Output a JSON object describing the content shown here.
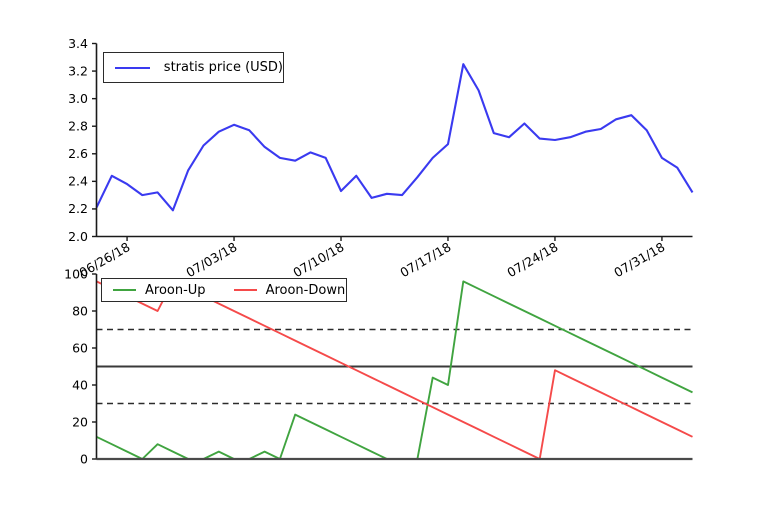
{
  "chart_data": [
    {
      "type": "line",
      "title": "",
      "xlabel": "",
      "ylabel": "",
      "grid": false,
      "ylim": [
        2.0,
        3.4
      ],
      "y_ticks": [
        2.0,
        2.2,
        2.4,
        2.6,
        2.8,
        3.0,
        3.2,
        3.4
      ],
      "y_tick_labels": [
        "2.0",
        "2.2",
        "2.4",
        "2.6",
        "2.8",
        "3.0",
        "3.2",
        "3.4"
      ],
      "x_tick_positions": [
        2,
        9,
        16,
        23,
        30,
        37
      ],
      "x_tick_labels": [
        "06/26/18",
        "07/03/18",
        "07/10/18",
        "07/17/18",
        "07/24/18",
        "07/31/18"
      ],
      "x_tick_rotation_deg": 30,
      "legend_position": "upper left",
      "series": [
        {
          "name": "stratis price (USD)",
          "color": "#3a3af0",
          "values": [
            2.21,
            2.44,
            2.38,
            2.3,
            2.32,
            2.19,
            2.48,
            2.66,
            2.76,
            2.81,
            2.77,
            2.65,
            2.57,
            2.55,
            2.61,
            2.57,
            2.33,
            2.44,
            2.28,
            2.31,
            2.3,
            2.43,
            2.57,
            2.67,
            3.25,
            3.06,
            2.75,
            2.72,
            2.82,
            2.71,
            2.7,
            2.72,
            2.76,
            2.78,
            2.85,
            2.88,
            2.77,
            2.57,
            2.5,
            2.32
          ]
        }
      ]
    },
    {
      "type": "line",
      "title": "",
      "xlabel": "",
      "ylabel": "",
      "grid": false,
      "ylim": [
        0,
        100
      ],
      "y_ticks": [
        0,
        20,
        40,
        60,
        80,
        100
      ],
      "y_tick_labels": [
        "0",
        "20",
        "40",
        "60",
        "80",
        "100"
      ],
      "x_tick_labels": [],
      "legend_position": "upper left",
      "reference_lines": [
        {
          "value": 70,
          "style": "dashed",
          "color": "#2b2b2b"
        },
        {
          "value": 50,
          "style": "solid",
          "color": "#3a3a3a"
        },
        {
          "value": 30,
          "style": "dashed",
          "color": "#2b2b2b"
        },
        {
          "value": 0,
          "style": "solid",
          "color": "#4a4a4a"
        }
      ],
      "series": [
        {
          "name": "Aroon-Up",
          "color": "#40a440",
          "values": [
            12,
            8,
            4,
            0,
            8,
            4,
            0,
            0,
            4,
            0,
            0,
            4,
            0,
            24,
            20,
            16,
            12,
            8,
            4,
            0,
            0,
            0,
            44,
            40,
            96,
            92,
            88,
            84,
            80,
            76,
            72,
            68,
            64,
            60,
            56,
            52,
            48,
            44,
            40,
            36
          ]
        },
        {
          "name": "Aroon-Down",
          "color": "#f54a4a",
          "values": [
            96,
            92,
            88,
            84,
            80,
            96,
            92,
            88,
            84,
            80,
            76,
            72,
            68,
            64,
            60,
            56,
            52,
            48,
            44,
            40,
            36,
            32,
            28,
            24,
            20,
            16,
            12,
            8,
            4,
            0,
            48,
            44,
            40,
            36,
            32,
            28,
            24,
            20,
            16,
            12
          ]
        }
      ]
    }
  ]
}
